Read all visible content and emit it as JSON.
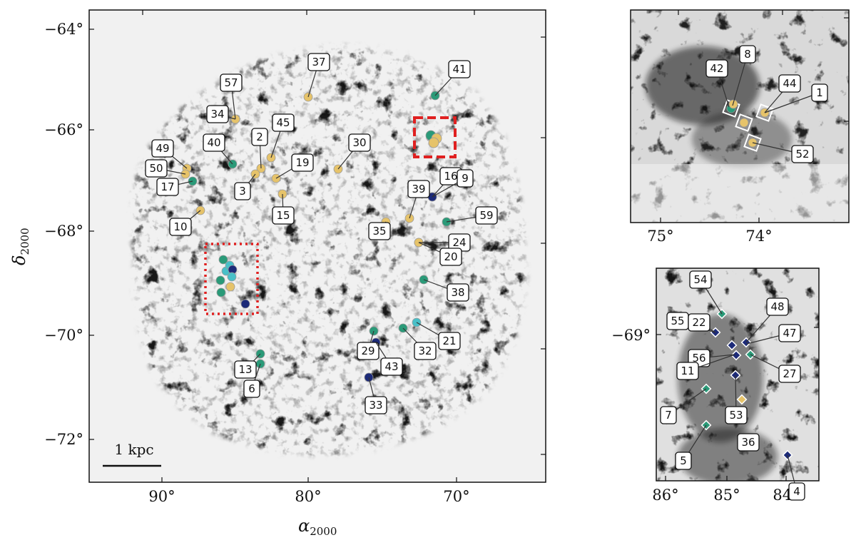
{
  "main_map": {
    "y_ticks": [
      "−64°",
      "−66°",
      "−68°",
      "−70°",
      "−72°"
    ],
    "x_ticks": [
      "90°",
      "80°",
      "70°"
    ],
    "x_label": "α",
    "x_label_sub": "2000",
    "y_label": "δ",
    "y_label_sub": "2000",
    "scale_bar": "1 kpc",
    "labels": [
      "57",
      "37",
      "41",
      "34",
      "45",
      "2",
      "40",
      "30",
      "49",
      "19",
      "50",
      "17",
      "3",
      "16",
      "9",
      "39",
      "15",
      "59",
      "10",
      "35",
      "24",
      "20",
      "38",
      "21",
      "29",
      "32",
      "43",
      "13",
      "6",
      "33"
    ]
  },
  "inset_top": {
    "x_ticks": [
      "75°",
      "74°"
    ],
    "labels": [
      "42",
      "8",
      "44",
      "1",
      "52"
    ]
  },
  "inset_bottom": {
    "y_ticks": [
      "−69°"
    ],
    "x_ticks": [
      "86°",
      "85°",
      "84°"
    ],
    "labels": [
      "54",
      "48",
      "55",
      "22",
      "47",
      "56",
      "11",
      "27",
      "7",
      "53",
      "36",
      "5",
      "4"
    ]
  },
  "colors": {
    "yellow": "#e6c36a",
    "green": "#2a9a78",
    "cyan": "#48c0c8",
    "navy": "#1c2a78",
    "red_box": "#e02020"
  }
}
